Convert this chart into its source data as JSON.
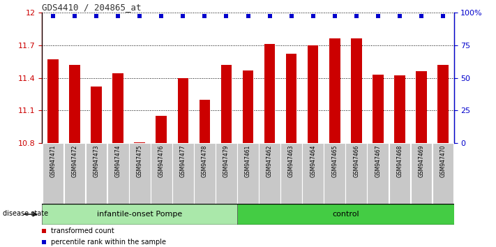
{
  "title": "GDS4410 / 204865_at",
  "samples": [
    "GSM947471",
    "GSM947472",
    "GSM947473",
    "GSM947474",
    "GSM947475",
    "GSM947476",
    "GSM947477",
    "GSM947478",
    "GSM947479",
    "GSM947461",
    "GSM947462",
    "GSM947463",
    "GSM947464",
    "GSM947465",
    "GSM947466",
    "GSM947467",
    "GSM947468",
    "GSM947469",
    "GSM947470"
  ],
  "bar_values": [
    11.57,
    11.52,
    11.32,
    11.44,
    10.81,
    11.05,
    11.4,
    11.2,
    11.52,
    11.47,
    11.71,
    11.62,
    11.7,
    11.76,
    11.76,
    11.43,
    11.42,
    11.46,
    11.52
  ],
  "percentile_values": [
    97,
    97,
    97,
    97,
    97,
    97,
    97,
    97,
    97,
    97,
    97,
    97,
    97,
    97,
    97,
    97,
    97,
    97,
    97
  ],
  "ymin": 10.8,
  "ymax": 12.0,
  "yticks": [
    10.8,
    11.1,
    11.4,
    11.7,
    12.0
  ],
  "ytick_labels": [
    "10.8",
    "11.1",
    "11.4",
    "11.7",
    "12"
  ],
  "y2ticks": [
    0,
    25,
    50,
    75,
    100
  ],
  "y2tick_labels": [
    "0",
    "25",
    "50",
    "75",
    "100%"
  ],
  "groups": [
    {
      "label": "infantile-onset Pompe",
      "start": 0,
      "end": 9,
      "color": "#aae8aa"
    },
    {
      "label": "control",
      "start": 9,
      "end": 19,
      "color": "#44cc44"
    }
  ],
  "bar_color": "#CC0000",
  "dot_color": "#0000CC",
  "cell_bg": "#C8C8C8",
  "title_fontsize": 9,
  "bar_fontsize": 5.5,
  "group_fontsize": 8,
  "legend_fontsize": 7
}
